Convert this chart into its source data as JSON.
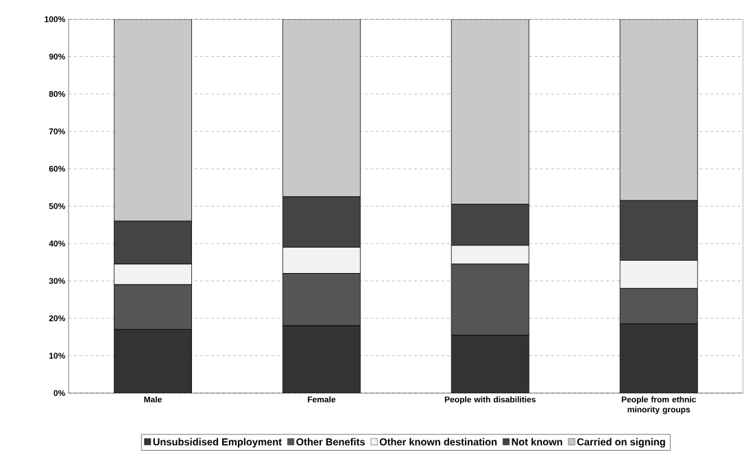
{
  "chart_data": {
    "type": "bar",
    "stacked": true,
    "categories": [
      "Male",
      "Female",
      "People with disabilities",
      "People from ethnic minority groups"
    ],
    "series": [
      {
        "name": "Unsubsidised Employment",
        "color": "#333333",
        "values": [
          17,
          18,
          15.5,
          18.5
        ]
      },
      {
        "name": "Other Benefits",
        "color": "#555555",
        "values": [
          12,
          14,
          19,
          9.5
        ]
      },
      {
        "name": "Other known destination",
        "color": "#f2f2f2",
        "values": [
          5.5,
          7,
          5,
          7.5
        ]
      },
      {
        "name": "Not known",
        "color": "#444444",
        "values": [
          11.5,
          13.5,
          11,
          16
        ]
      },
      {
        "name": "Carried on signing",
        "color": "#c8c8c8",
        "values": [
          54,
          47.5,
          49.5,
          48.5
        ]
      }
    ],
    "ylim": [
      0,
      100
    ],
    "yticks": [
      {
        "value": 0,
        "label": "0%"
      },
      {
        "value": 10,
        "label": "10%"
      },
      {
        "value": 20,
        "label": "20%"
      },
      {
        "value": 30,
        "label": "30%"
      },
      {
        "value": 40,
        "label": "40%"
      },
      {
        "value": 50,
        "label": "50%"
      },
      {
        "value": 60,
        "label": "60%"
      },
      {
        "value": 70,
        "label": "70%"
      },
      {
        "value": 80,
        "label": "80%"
      },
      {
        "value": 90,
        "label": "90%"
      },
      {
        "value": 100,
        "label": "100%"
      }
    ],
    "grid": "y",
    "legend": "bottom"
  }
}
